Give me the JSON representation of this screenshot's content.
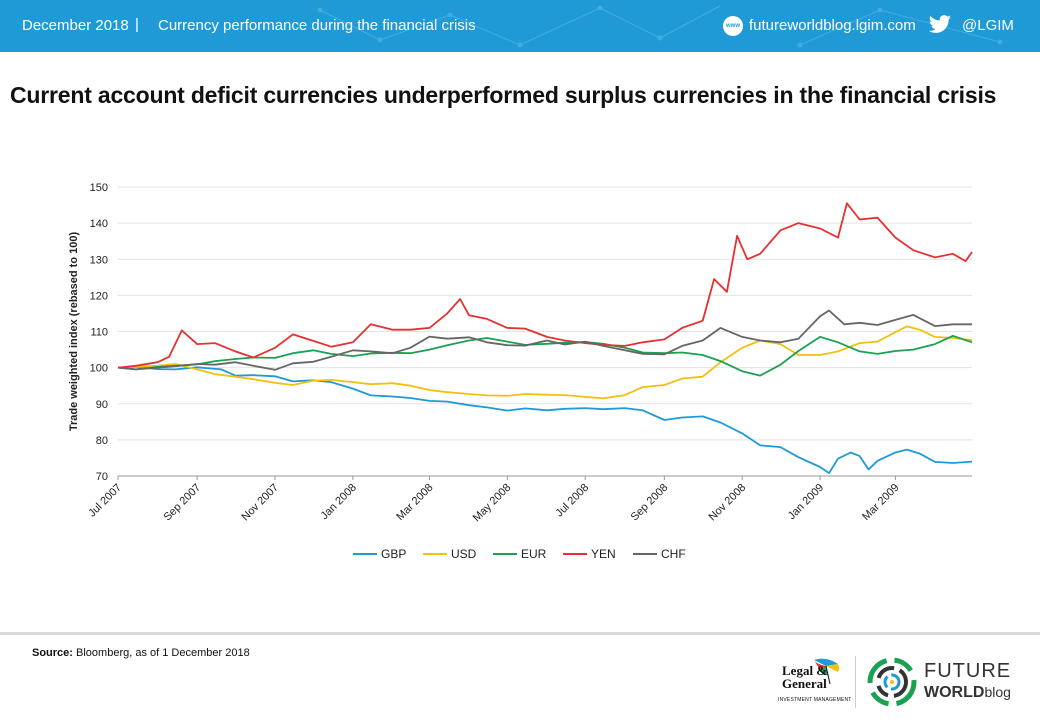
{
  "header": {
    "date": "December 2018",
    "separator": "|",
    "subtitle": "Currency performance during the financial crisis",
    "web_icon": "www",
    "website": "futureworldblog.lgim.com",
    "twitter_handle": "@LGIM",
    "icons": [
      "globe-icon",
      "twitter-bird-icon"
    ],
    "background_color": "#1f9ad6"
  },
  "title": "Current account deficit currencies underperformed surplus currencies in the financial crisis",
  "chart_data": {
    "type": "line",
    "ylabel": "Trade weighted index (rebased to 100)",
    "xlabel": "",
    "ylim": [
      70,
      150
    ],
    "yticks": [
      70,
      80,
      90,
      100,
      110,
      120,
      130,
      140,
      150
    ],
    "xtick_labels": [
      "Jul 2007",
      "Sep 2007",
      "Nov 2007",
      "Jan 2008",
      "Mar 2008",
      "May 2008",
      "Jul 2008",
      "Sep 2008",
      "Nov 2008",
      "Jan 2009",
      "Mar 2009"
    ],
    "xtick_dates": [
      "2007-07-01",
      "2007-09-01",
      "2007-11-01",
      "2008-01-01",
      "2008-03-01",
      "2008-05-01",
      "2008-07-01",
      "2008-09-01",
      "2008-11-01",
      "2009-01-01",
      "2009-03-01"
    ],
    "x_range": [
      "2007-07-01",
      "2009-04-30"
    ],
    "grid": "horizontal",
    "legend_position": "bottom",
    "series": [
      {
        "name": "GBP",
        "color": "#1f9ad6",
        "points": [
          [
            "2007-07-01",
            100
          ],
          [
            "2007-07-15",
            100.2
          ],
          [
            "2007-08-01",
            99.6
          ],
          [
            "2007-08-15",
            99.5
          ],
          [
            "2007-09-01",
            100.1
          ],
          [
            "2007-09-20",
            99.5
          ],
          [
            "2007-10-01",
            97.8
          ],
          [
            "2007-10-15",
            97.9
          ],
          [
            "2007-11-01",
            97.6
          ],
          [
            "2007-11-15",
            96.2
          ],
          [
            "2007-12-01",
            96.5
          ],
          [
            "2007-12-15",
            96.0
          ],
          [
            "2008-01-01",
            94.2
          ],
          [
            "2008-01-15",
            92.3
          ],
          [
            "2008-02-01",
            92.0
          ],
          [
            "2008-02-15",
            91.6
          ],
          [
            "2008-03-01",
            90.8
          ],
          [
            "2008-03-15",
            90.6
          ],
          [
            "2008-04-01",
            89.6
          ],
          [
            "2008-04-15",
            89.0
          ],
          [
            "2008-05-01",
            88.1
          ],
          [
            "2008-05-15",
            88.7
          ],
          [
            "2008-06-01",
            88.2
          ],
          [
            "2008-06-15",
            88.6
          ],
          [
            "2008-07-01",
            88.8
          ],
          [
            "2008-07-15",
            88.5
          ],
          [
            "2008-08-01",
            88.8
          ],
          [
            "2008-08-15",
            88.2
          ],
          [
            "2008-09-01",
            85.5
          ],
          [
            "2008-09-15",
            86.2
          ],
          [
            "2008-10-01",
            86.5
          ],
          [
            "2008-10-15",
            84.8
          ],
          [
            "2008-11-01",
            81.8
          ],
          [
            "2008-11-15",
            78.5
          ],
          [
            "2008-12-01",
            78.0
          ],
          [
            "2008-12-15",
            75.2
          ],
          [
            "2009-01-01",
            72.5
          ],
          [
            "2009-01-08",
            70.8
          ],
          [
            "2009-01-15",
            74.8
          ],
          [
            "2009-01-25",
            76.5
          ],
          [
            "2009-02-01",
            75.5
          ],
          [
            "2009-02-08",
            71.8
          ],
          [
            "2009-02-15",
            74.2
          ],
          [
            "2009-03-01",
            76.5
          ],
          [
            "2009-03-10",
            77.3
          ],
          [
            "2009-03-20",
            76.2
          ],
          [
            "2009-04-01",
            73.9
          ],
          [
            "2009-04-15",
            73.6
          ],
          [
            "2009-04-30",
            74.0
          ]
        ]
      },
      {
        "name": "USD",
        "color": "#f2c10f",
        "points": [
          [
            "2007-07-01",
            100
          ],
          [
            "2007-07-15",
            100.2
          ],
          [
            "2007-08-01",
            100.5
          ],
          [
            "2007-08-15",
            101.0
          ],
          [
            "2007-09-01",
            99.5
          ],
          [
            "2007-09-15",
            98.2
          ],
          [
            "2007-10-01",
            97.5
          ],
          [
            "2007-10-15",
            96.8
          ],
          [
            "2007-11-01",
            95.8
          ],
          [
            "2007-11-15",
            95.2
          ],
          [
            "2007-12-01",
            96.4
          ],
          [
            "2007-12-15",
            96.6
          ],
          [
            "2008-01-01",
            96.0
          ],
          [
            "2008-01-15",
            95.4
          ],
          [
            "2008-02-01",
            95.7
          ],
          [
            "2008-02-15",
            95.0
          ],
          [
            "2008-03-01",
            93.8
          ],
          [
            "2008-03-15",
            93.2
          ],
          [
            "2008-04-01",
            92.7
          ],
          [
            "2008-04-15",
            92.3
          ],
          [
            "2008-05-01",
            92.2
          ],
          [
            "2008-05-15",
            92.7
          ],
          [
            "2008-06-01",
            92.5
          ],
          [
            "2008-06-15",
            92.4
          ],
          [
            "2008-07-01",
            91.9
          ],
          [
            "2008-07-15",
            91.5
          ],
          [
            "2008-08-01",
            92.4
          ],
          [
            "2008-08-15",
            94.6
          ],
          [
            "2008-09-01",
            95.2
          ],
          [
            "2008-09-15",
            97.0
          ],
          [
            "2008-10-01",
            97.5
          ],
          [
            "2008-10-15",
            101.5
          ],
          [
            "2008-11-01",
            105.5
          ],
          [
            "2008-11-15",
            107.5
          ],
          [
            "2008-12-01",
            106.5
          ],
          [
            "2008-12-15",
            103.5
          ],
          [
            "2009-01-01",
            103.5
          ],
          [
            "2009-01-15",
            104.5
          ],
          [
            "2009-02-01",
            106.8
          ],
          [
            "2009-02-15",
            107.2
          ],
          [
            "2009-03-01",
            109.8
          ],
          [
            "2009-03-10",
            111.4
          ],
          [
            "2009-03-20",
            110.5
          ],
          [
            "2009-04-01",
            108.5
          ],
          [
            "2009-04-15",
            108.2
          ],
          [
            "2009-04-30",
            107.6
          ]
        ]
      },
      {
        "name": "EUR",
        "color": "#1aa151",
        "points": [
          [
            "2007-07-01",
            100
          ],
          [
            "2007-07-15",
            99.5
          ],
          [
            "2007-08-01",
            100.2
          ],
          [
            "2007-08-15",
            100.5
          ],
          [
            "2007-09-01",
            100.9
          ],
          [
            "2007-09-15",
            101.8
          ],
          [
            "2007-10-01",
            102.4
          ],
          [
            "2007-10-15",
            102.8
          ],
          [
            "2007-11-01",
            102.7
          ],
          [
            "2007-11-15",
            104.0
          ],
          [
            "2007-12-01",
            104.8
          ],
          [
            "2007-12-15",
            103.8
          ],
          [
            "2008-01-01",
            103.2
          ],
          [
            "2008-01-15",
            103.9
          ],
          [
            "2008-02-01",
            104.1
          ],
          [
            "2008-02-15",
            104.0
          ],
          [
            "2008-03-01",
            105.0
          ],
          [
            "2008-03-15",
            106.2
          ],
          [
            "2008-04-01",
            107.5
          ],
          [
            "2008-04-15",
            108.2
          ],
          [
            "2008-05-01",
            107.2
          ],
          [
            "2008-05-15",
            106.3
          ],
          [
            "2008-06-01",
            106.6
          ],
          [
            "2008-06-15",
            106.9
          ],
          [
            "2008-07-01",
            107.1
          ],
          [
            "2008-07-15",
            106.6
          ],
          [
            "2008-08-01",
            105.5
          ],
          [
            "2008-08-15",
            104.2
          ],
          [
            "2008-09-01",
            104.0
          ],
          [
            "2008-09-15",
            104.2
          ],
          [
            "2008-10-01",
            103.5
          ],
          [
            "2008-10-15",
            101.8
          ],
          [
            "2008-11-01",
            99.0
          ],
          [
            "2008-11-15",
            97.8
          ],
          [
            "2008-12-01",
            100.8
          ],
          [
            "2008-12-15",
            104.6
          ],
          [
            "2009-01-01",
            108.5
          ],
          [
            "2009-01-15",
            107.0
          ],
          [
            "2009-02-01",
            104.5
          ],
          [
            "2009-02-15",
            103.8
          ],
          [
            "2009-03-01",
            104.6
          ],
          [
            "2009-03-15",
            105.0
          ],
          [
            "2009-04-01",
            106.5
          ],
          [
            "2009-04-15",
            108.8
          ],
          [
            "2009-04-30",
            107.0
          ]
        ]
      },
      {
        "name": "YEN",
        "color": "#e53131",
        "points": [
          [
            "2007-07-01",
            100
          ],
          [
            "2007-07-15",
            100.5
          ],
          [
            "2007-08-01",
            101.5
          ],
          [
            "2007-08-10",
            103.0
          ],
          [
            "2007-08-20",
            110.3
          ],
          [
            "2007-09-01",
            106.5
          ],
          [
            "2007-09-15",
            106.8
          ],
          [
            "2007-10-01",
            104.5
          ],
          [
            "2007-10-15",
            102.8
          ],
          [
            "2007-11-01",
            105.5
          ],
          [
            "2007-11-15",
            109.2
          ],
          [
            "2007-12-01",
            107.4
          ],
          [
            "2007-12-15",
            105.8
          ],
          [
            "2008-01-01",
            107.0
          ],
          [
            "2008-01-15",
            112.0
          ],
          [
            "2008-02-01",
            110.5
          ],
          [
            "2008-02-15",
            110.5
          ],
          [
            "2008-03-01",
            111.0
          ],
          [
            "2008-03-15",
            115.0
          ],
          [
            "2008-03-25",
            119.0
          ],
          [
            "2008-04-01",
            114.5
          ],
          [
            "2008-04-15",
            113.5
          ],
          [
            "2008-05-01",
            111.0
          ],
          [
            "2008-05-15",
            110.8
          ],
          [
            "2008-06-01",
            108.5
          ],
          [
            "2008-06-15",
            107.5
          ],
          [
            "2008-07-01",
            106.8
          ],
          [
            "2008-07-15",
            106.3
          ],
          [
            "2008-08-01",
            106.0
          ],
          [
            "2008-08-15",
            107.0
          ],
          [
            "2008-09-01",
            107.8
          ],
          [
            "2008-09-15",
            111.0
          ],
          [
            "2008-10-01",
            113.0
          ],
          [
            "2008-10-10",
            124.5
          ],
          [
            "2008-10-20",
            121.0
          ],
          [
            "2008-10-28",
            136.5
          ],
          [
            "2008-11-05",
            130.0
          ],
          [
            "2008-11-15",
            131.5
          ],
          [
            "2008-12-01",
            138.0
          ],
          [
            "2008-12-15",
            140.0
          ],
          [
            "2009-01-01",
            138.5
          ],
          [
            "2009-01-15",
            136.0
          ],
          [
            "2009-01-22",
            145.5
          ],
          [
            "2009-02-01",
            141.0
          ],
          [
            "2009-02-15",
            141.5
          ],
          [
            "2009-03-01",
            136.0
          ],
          [
            "2009-03-15",
            132.5
          ],
          [
            "2009-04-01",
            130.5
          ],
          [
            "2009-04-15",
            131.5
          ],
          [
            "2009-04-25",
            129.5
          ],
          [
            "2009-04-30",
            132.0
          ]
        ]
      },
      {
        "name": "CHF",
        "color": "#666666",
        "points": [
          [
            "2007-07-01",
            100
          ],
          [
            "2007-07-15",
            99.5
          ],
          [
            "2007-08-01",
            100.0
          ],
          [
            "2007-08-15",
            100.4
          ],
          [
            "2007-09-01",
            101.0
          ],
          [
            "2007-09-15",
            100.8
          ],
          [
            "2007-10-01",
            101.5
          ],
          [
            "2007-10-15",
            100.5
          ],
          [
            "2007-11-01",
            99.4
          ],
          [
            "2007-11-15",
            101.2
          ],
          [
            "2007-12-01",
            101.6
          ],
          [
            "2007-12-15",
            103.0
          ],
          [
            "2008-01-01",
            104.8
          ],
          [
            "2008-01-15",
            104.5
          ],
          [
            "2008-02-01",
            104.0
          ],
          [
            "2008-02-15",
            105.5
          ],
          [
            "2008-03-01",
            108.6
          ],
          [
            "2008-03-15",
            108.0
          ],
          [
            "2008-04-01",
            108.4
          ],
          [
            "2008-04-15",
            107.0
          ],
          [
            "2008-05-01",
            106.2
          ],
          [
            "2008-05-15",
            106.1
          ],
          [
            "2008-06-01",
            107.5
          ],
          [
            "2008-06-15",
            106.4
          ],
          [
            "2008-07-01",
            107.2
          ],
          [
            "2008-07-15",
            106.0
          ],
          [
            "2008-08-01",
            104.8
          ],
          [
            "2008-08-15",
            103.8
          ],
          [
            "2008-09-01",
            103.7
          ],
          [
            "2008-09-15",
            106.0
          ],
          [
            "2008-10-01",
            107.5
          ],
          [
            "2008-10-15",
            111.0
          ],
          [
            "2008-11-01",
            108.5
          ],
          [
            "2008-11-15",
            107.5
          ],
          [
            "2008-12-01",
            107.0
          ],
          [
            "2008-12-15",
            108.0
          ],
          [
            "2009-01-01",
            114.2
          ],
          [
            "2009-01-08",
            115.8
          ],
          [
            "2009-01-20",
            112.0
          ],
          [
            "2009-02-01",
            112.4
          ],
          [
            "2009-02-15",
            111.8
          ],
          [
            "2009-03-01",
            113.2
          ],
          [
            "2009-03-15",
            114.6
          ],
          [
            "2009-04-01",
            111.5
          ],
          [
            "2009-04-15",
            112.0
          ],
          [
            "2009-04-30",
            112.0
          ]
        ]
      }
    ]
  },
  "source": {
    "label": "Source:",
    "text": "Bloomberg, as of 1 December 2018"
  },
  "logos": {
    "lgim_line1": "Legal &",
    "lgim_line2": "General",
    "lgim_line3": "INVESTMENT MANAGEMENT",
    "fw_line1": "FUTURE",
    "fw_line2a": "WORLD",
    "fw_line2b": "blog"
  }
}
